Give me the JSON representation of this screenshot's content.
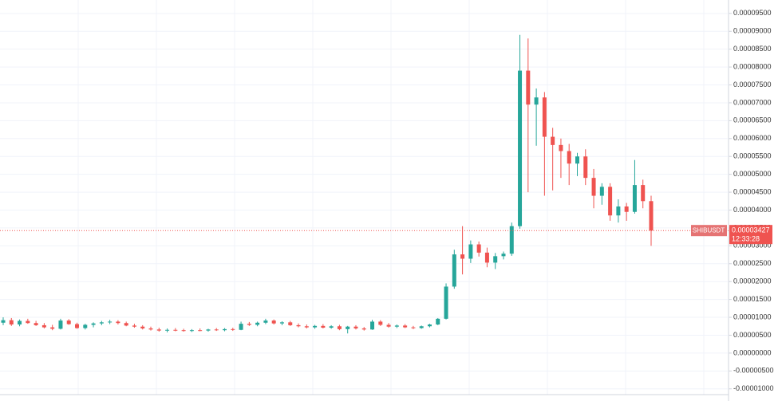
{
  "chart_data": {
    "type": "candlestick",
    "ylim": [
      -1.34e-05,
      9.875e-05
    ],
    "yticks": [
      {
        "value": 9.5e-05,
        "label": "0.00009500"
      },
      {
        "value": 9e-05,
        "label": "0.00009000"
      },
      {
        "value": 8.5e-05,
        "label": "0.00008500"
      },
      {
        "value": 8e-05,
        "label": "0.00008000"
      },
      {
        "value": 7.5e-05,
        "label": "0.00007500"
      },
      {
        "value": 7e-05,
        "label": "0.00007000"
      },
      {
        "value": 6.5e-05,
        "label": "0.00006500"
      },
      {
        "value": 6e-05,
        "label": "0.00006000"
      },
      {
        "value": 5.5e-05,
        "label": "0.00005500"
      },
      {
        "value": 5e-05,
        "label": "0.00005000"
      },
      {
        "value": 4.5e-05,
        "label": "0.00004500"
      },
      {
        "value": 4e-05,
        "label": "0.00004000"
      },
      {
        "value": 3.5e-05,
        "label": "0.00003500"
      },
      {
        "value": 3e-05,
        "label": "0.00003000"
      },
      {
        "value": 2.5e-05,
        "label": "0.00002500"
      },
      {
        "value": 2e-05,
        "label": "0.00002000"
      },
      {
        "value": 1.5e-05,
        "label": "0.00001500"
      },
      {
        "value": 1e-05,
        "label": "0.00001000"
      },
      {
        "value": 5e-06,
        "label": "0.00000500"
      },
      {
        "value": 0,
        "label": "0.00000000"
      },
      {
        "value": -5e-06,
        "label": "-0.00000500"
      },
      {
        "value": -1e-05,
        "label": "-0.00001000"
      }
    ],
    "grid": true,
    "up_color": "#26a69a",
    "down_color": "#ef5350",
    "last_price": {
      "symbol": "SHIBUSDT",
      "value": 3.427e-05,
      "label": "0.00003427",
      "time": "12:33:28"
    },
    "ohlc": [
      [
        8.5e-06,
        1e-05,
        7.8e-06,
        9.2e-06
      ],
      [
        9.2e-06,
        9.8e-06,
        7.6e-06,
        8e-06
      ],
      [
        8e-06,
        9.4e-06,
        7.5e-06,
        9e-06
      ],
      [
        9e-06,
        9.6e-06,
        8.2e-06,
        8.4e-06
      ],
      [
        8.4e-06,
        9e-06,
        7.6e-06,
        7.8e-06
      ],
      [
        7.8e-06,
        8.4e-06,
        6.9e-06,
        7.2e-06
      ],
      [
        7.2e-06,
        7.9e-06,
        6.4e-06,
        6.8e-06
      ],
      [
        6.8e-06,
        9.6e-06,
        6.6e-06,
        9.1e-06
      ],
      [
        9.1e-06,
        9.5e-06,
        7.9e-06,
        8.1e-06
      ],
      [
        8.1e-06,
        8.5e-06,
        6.8e-06,
        7e-06
      ],
      [
        7e-06,
        8.2e-06,
        6.6e-06,
        7.9e-06
      ],
      [
        7.9e-06,
        8.6e-06,
        7.2e-06,
        8.3e-06
      ],
      [
        8.3e-06,
        9e-06,
        7.8e-06,
        8.6e-06
      ],
      [
        8.6e-06,
        9.3e-06,
        8.1e-06,
        8.8e-06
      ],
      [
        8.8e-06,
        9.2e-06,
        8e-06,
        8.4e-06
      ],
      [
        8.4e-06,
        8.8e-06,
        7.5e-06,
        7.7e-06
      ],
      [
        7.7e-06,
        8.2e-06,
        7.1e-06,
        7.4e-06
      ],
      [
        7.4e-06,
        7.8e-06,
        6.6e-06,
        6.9e-06
      ],
      [
        6.9e-06,
        7.4e-06,
        6.3e-06,
        6.6e-06
      ],
      [
        6.6e-06,
        7.1e-06,
        6e-06,
        6.3e-06
      ],
      [
        6.3e-06,
        6.9e-06,
        5.8e-06,
        6.5e-06
      ],
      [
        6.5e-06,
        7e-06,
        6.1e-06,
        6.4e-06
      ],
      [
        6.4e-06,
        6.8e-06,
        6e-06,
        6.2e-06
      ],
      [
        6.2e-06,
        6.7e-06,
        5.9e-06,
        6.4e-06
      ],
      [
        6.4e-06,
        6.9e-06,
        6.1e-06,
        6.3e-06
      ],
      [
        6.3e-06,
        6.8e-06,
        6e-06,
        6.6e-06
      ],
      [
        6.6e-06,
        7e-06,
        6.2e-06,
        6.4e-06
      ],
      [
        6.4e-06,
        7e-06,
        6.1e-06,
        6.7e-06
      ],
      [
        6.7e-06,
        7.1e-06,
        6.2e-06,
        6.5e-06
      ],
      [
        6.5e-06,
        8.8e-06,
        6.4e-06,
        8.2e-06
      ],
      [
        8.2e-06,
        8.7e-06,
        7.6e-06,
        7.9e-06
      ],
      [
        7.9e-06,
        8.8e-06,
        7.5e-06,
        8.5e-06
      ],
      [
        8.5e-06,
        9.6e-06,
        8.1e-06,
        9.1e-06
      ],
      [
        9.1e-06,
        9.4e-06,
        8e-06,
        8.3e-06
      ],
      [
        8.3e-06,
        8.9e-06,
        7.8e-06,
        8.6e-06
      ],
      [
        8.6e-06,
        9e-06,
        7.6e-06,
        7.8e-06
      ],
      [
        7.8e-06,
        8.3e-06,
        7.2e-06,
        7.5e-06
      ],
      [
        7.5e-06,
        8e-06,
        6.9e-06,
        7.2e-06
      ],
      [
        7.2e-06,
        7.9e-06,
        6.8e-06,
        7.6e-06
      ],
      [
        7.6e-06,
        8.1e-06,
        6.9e-06,
        7.1e-06
      ],
      [
        7.1e-06,
        7.8e-06,
        6.8e-06,
        7.5e-06
      ],
      [
        7.5e-06,
        7.9e-06,
        6.4e-06,
        6.7e-06
      ],
      [
        6.7e-06,
        7.6e-06,
        5.5e-06,
        7.4e-06
      ],
      [
        7.4e-06,
        7.8e-06,
        6.6e-06,
        6.9e-06
      ],
      [
        6.9e-06,
        7.3e-06,
        6.3e-06,
        6.6e-06
      ],
      [
        6.6e-06,
        9.3e-06,
        6.5e-06,
        8.8e-06
      ],
      [
        8.8e-06,
        9.2e-06,
        7.6e-06,
        7.9e-06
      ],
      [
        7.9e-06,
        8.4e-06,
        7.1e-06,
        7.4e-06
      ],
      [
        7.4e-06,
        8e-06,
        7e-06,
        7.7e-06
      ],
      [
        7.7e-06,
        8.1e-06,
        7e-06,
        7.2e-06
      ],
      [
        7.2e-06,
        7.6e-06,
        6.7e-06,
        7e-06
      ],
      [
        7e-06,
        7.7e-06,
        6.8e-06,
        7.5e-06
      ],
      [
        7.5e-06,
        8.2e-06,
        7.2e-06,
        8e-06
      ],
      [
        8e-06,
        9.8e-06,
        7.8e-06,
        9.6e-06
      ],
      [
        9.6e-06,
        1.95e-05,
        9.4e-06,
        1.86e-05
      ],
      [
        1.86e-05,
        2.89e-05,
        1.8e-05,
        2.76e-05
      ],
      [
        2.76e-05,
        3.55e-05,
        2.2e-05,
        2.64e-05
      ],
      [
        2.64e-05,
        3.15e-05,
        2.52e-05,
        3.04e-05
      ],
      [
        3.04e-05,
        3.12e-05,
        2.7e-05,
        2.81e-05
      ],
      [
        2.81e-05,
        2.95e-05,
        2.4e-05,
        2.53e-05
      ],
      [
        2.53e-05,
        2.8e-05,
        2.35e-05,
        2.71e-05
      ],
      [
        2.71e-05,
        2.84e-05,
        2.62e-05,
        2.78e-05
      ],
      [
        2.78e-05,
        3.65e-05,
        2.72e-05,
        3.55e-05
      ],
      [
        3.55e-05,
        8.9e-05,
        3.48e-05,
        7.9e-05
      ],
      [
        7.9e-05,
        8.8e-05,
        4.5e-05,
        6.95e-05
      ],
      [
        6.95e-05,
        7.4e-05,
        5.8e-05,
        7.15e-05
      ],
      [
        7.15e-05,
        7.3e-05,
        4.4e-05,
        6.05e-05
      ],
      [
        6.05e-05,
        6.3e-05,
        4.55e-05,
        5.82e-05
      ],
      [
        5.82e-05,
        6e-05,
        4.9e-05,
        5.65e-05
      ],
      [
        5.65e-05,
        5.85e-05,
        4.7e-05,
        5.3e-05
      ],
      [
        5.3e-05,
        5.6e-05,
        4.95e-05,
        5.5e-05
      ],
      [
        5.5e-05,
        5.7e-05,
        4.7e-05,
        4.9e-05
      ],
      [
        4.9e-05,
        5.15e-05,
        4.05e-05,
        4.4e-05
      ],
      [
        4.4e-05,
        4.75e-05,
        4.15e-05,
        4.65e-05
      ],
      [
        4.65e-05,
        4.75e-05,
        3.7e-05,
        3.85e-05
      ],
      [
        3.85e-05,
        4.3e-05,
        3.65e-05,
        4.1e-05
      ],
      [
        4.1e-05,
        4.2e-05,
        3.7e-05,
        3.95e-05
      ],
      [
        3.95e-05,
        5.4e-05,
        3.9e-05,
        4.7e-05
      ],
      [
        4.7e-05,
        4.85e-05,
        4.05e-05,
        4.25e-05
      ],
      [
        4.25e-05,
        4.4e-05,
        3e-05,
        3.427e-05
      ]
    ]
  }
}
